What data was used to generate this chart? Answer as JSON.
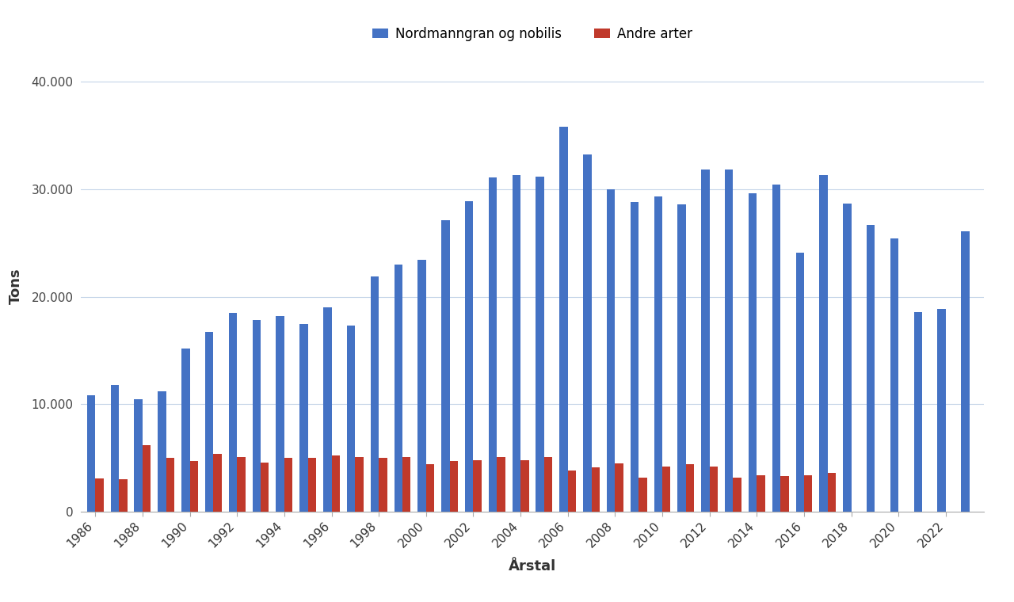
{
  "years": [
    1986,
    1987,
    1988,
    1989,
    1990,
    1991,
    1992,
    1993,
    1994,
    1995,
    1996,
    1997,
    1998,
    1999,
    2000,
    2001,
    2002,
    2003,
    2004,
    2005,
    2006,
    2007,
    2008,
    2009,
    2010,
    2011,
    2012,
    2013,
    2014,
    2015,
    2016,
    2017,
    2018,
    2019,
    2020,
    2021,
    2022,
    2023
  ],
  "blue_values": [
    10800,
    11800,
    10500,
    11200,
    15200,
    16700,
    18500,
    17800,
    18200,
    17500,
    19000,
    17300,
    21900,
    23000,
    23400,
    27100,
    28900,
    31100,
    31300,
    31200,
    35800,
    33200,
    30000,
    28800,
    29300,
    28600,
    31800,
    31800,
    29600,
    30400,
    24100,
    31300,
    28700,
    26700,
    25400,
    18600,
    18900,
    26100
  ],
  "red_values": [
    3100,
    3000,
    6200,
    5000,
    4700,
    5400,
    5100,
    4600,
    5000,
    5000,
    5200,
    5100,
    5000,
    5100,
    4400,
    4700,
    4800,
    5100,
    4800,
    5100,
    3800,
    4100,
    4500,
    3200,
    4200,
    4400,
    4200,
    3200,
    3400,
    3300,
    3400,
    3600,
    0,
    0,
    0,
    0,
    0,
    0
  ],
  "blue_label": "Nordmanngran og nobilis",
  "red_label": "Andre arter",
  "xlabel": "Årstal",
  "ylabel": "Tons",
  "ylim": [
    0,
    42000
  ],
  "yticks": [
    0,
    10000,
    20000,
    30000,
    40000
  ],
  "ytick_labels": [
    "0",
    "10.000",
    "20.000",
    "30.000",
    "40.000"
  ],
  "blue_color": "#4472C4",
  "red_color": "#C0392B",
  "background_color": "#FFFFFF",
  "grid_color": "#C5D5E8"
}
